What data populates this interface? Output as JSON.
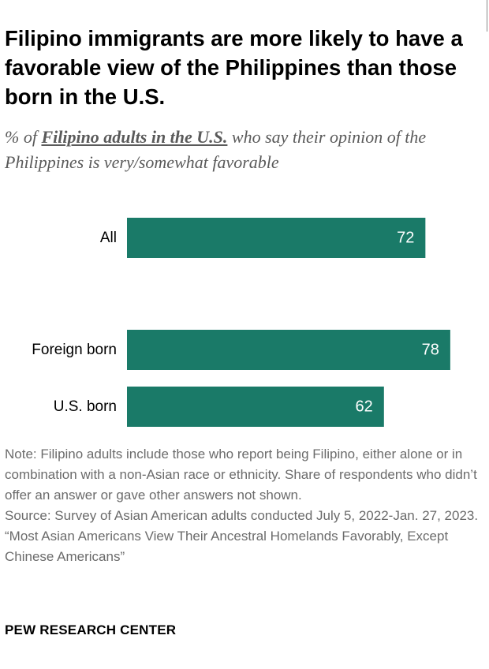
{
  "title": "Filipino immigrants are more likely to have a favorable view of the Philippines than those born in the U.S.",
  "subtitle": {
    "prefix": "% of ",
    "emphasis": "Filipino adults in the U.S.",
    "suffix": " who say their opinion of the Philippines is very/somewhat favorable"
  },
  "colors": {
    "bar": "#1a7a68",
    "bar_label": "#ffffff",
    "category_label": "#000000"
  },
  "chart_data": {
    "type": "bar",
    "orientation": "horizontal",
    "categories": [
      "All",
      "Foreign born",
      "U.S. born"
    ],
    "values": [
      72,
      78,
      62
    ],
    "title": "Filipino immigrants are more likely to have a favorable view of the Philippines than those born in the U.S.",
    "xlabel": "",
    "ylabel": "",
    "xlim": [
      0,
      100
    ],
    "grid": false,
    "legend": "none"
  },
  "notes": {
    "note": "Note: Filipino adults include those who report being Filipino, either alone or in combination with a non-Asian race or ethnicity. Share of respondents who didn’t offer an answer or gave other answers not shown.",
    "source": "Source: Survey of Asian American adults conducted July 5, 2022-Jan. 27, 2023.",
    "citation": "“Most Asian Americans View Their Ancestral Homelands Favorably, Except Chinese Americans”"
  },
  "brand": "PEW RESEARCH CENTER"
}
